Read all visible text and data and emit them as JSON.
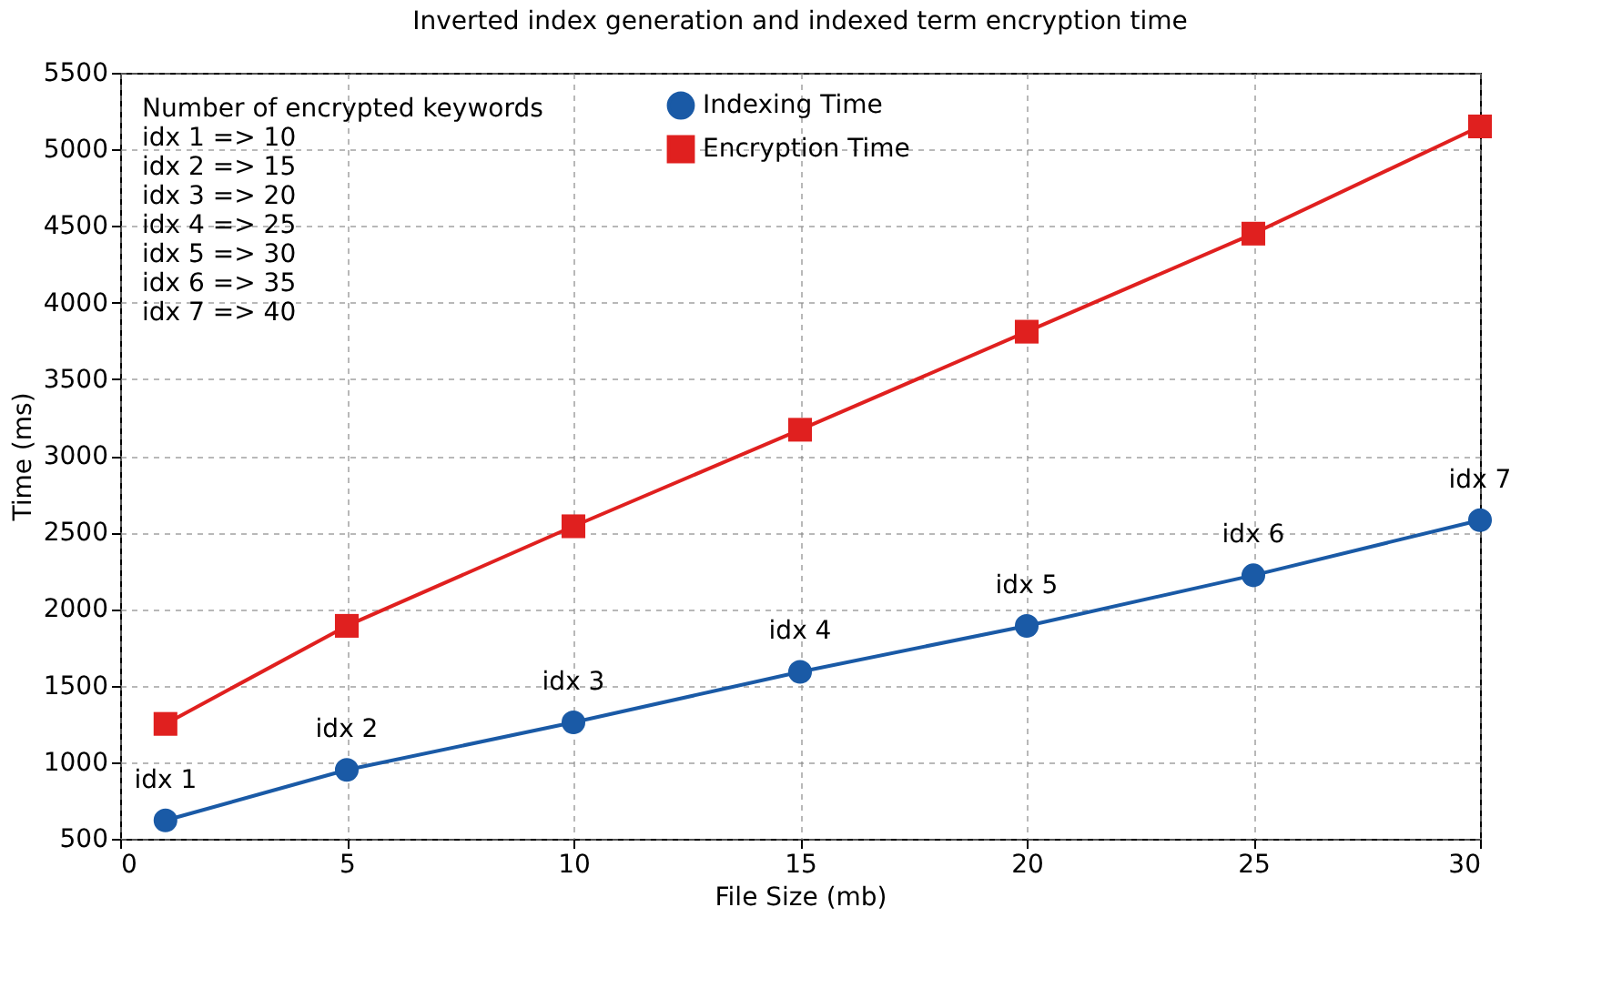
{
  "chart_data": {
    "type": "line",
    "title": "Inverted index generation and indexed term encryption time",
    "xlabel": "File Size (mb)",
    "ylabel": "Time (ms)",
    "x": [
      1,
      5,
      10,
      15,
      20,
      25,
      30
    ],
    "series": [
      {
        "name": "Indexing Time",
        "color": "#1a5aa6",
        "marker": "circle",
        "values": [
          620,
          950,
          1260,
          1590,
          1890,
          2220,
          2580
        ]
      },
      {
        "name": "Encryption Time",
        "color": "#e0201f",
        "marker": "square",
        "values": [
          1250,
          1890,
          2540,
          3170,
          3810,
          4450,
          5150
        ]
      }
    ],
    "xlim": [
      0,
      30
    ],
    "xticks": [
      0,
      5,
      10,
      15,
      20,
      25,
      30
    ],
    "ylim": [
      500,
      5500
    ],
    "yticks": [
      500,
      1000,
      1500,
      2000,
      2500,
      3000,
      3500,
      4000,
      4500,
      5000,
      5500
    ],
    "grid": true,
    "legend": "top",
    "line_style": "solid",
    "annotations": [
      "Number of encrypted keywords",
      "idx 1 => 10",
      "idx 2 => 15",
      "idx 3 => 20",
      "idx 4 => 25",
      "idx 5 => 30",
      "idx 6 => 35",
      "idx 7 => 40",
      {
        "text": "idx 1",
        "x": 1,
        "y": 620
      },
      {
        "text": "idx 2",
        "x": 5,
        "y": 950
      },
      {
        "text": "idx 3",
        "x": 10,
        "y": 1260
      },
      {
        "text": "idx 4",
        "x": 15,
        "y": 1590
      },
      {
        "text": "idx 5",
        "x": 20,
        "y": 1890
      },
      {
        "text": "idx 6",
        "x": 25,
        "y": 2220
      },
      {
        "text": "idx 7",
        "x": 30,
        "y": 2580
      }
    ]
  }
}
